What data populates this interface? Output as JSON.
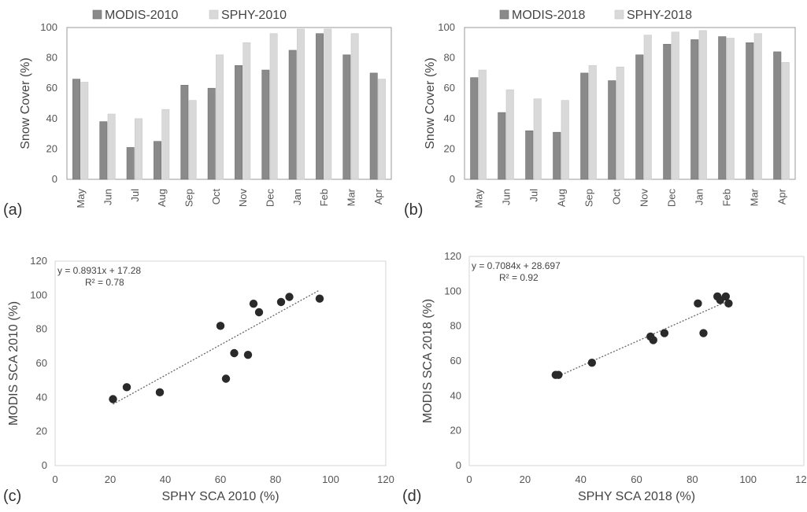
{
  "chart_data": [
    {
      "panel": "(a)",
      "type": "bar",
      "categories": [
        "May",
        "Jun",
        "Jul",
        "Aug",
        "Sep",
        "Oct",
        "Nov",
        "Dec",
        "Jan",
        "Feb",
        "Mar",
        "Apr"
      ],
      "series": [
        {
          "name": "MODIS-2010",
          "values": [
            66,
            38,
            21,
            25,
            62,
            60,
            75,
            72,
            85,
            96,
            82,
            70
          ]
        },
        {
          "name": "SPHY-2010",
          "values": [
            64,
            43,
            40,
            46,
            52,
            82,
            90,
            96,
            99,
            99,
            96,
            66
          ]
        }
      ],
      "xlabel": "",
      "ylabel": "Snow Cover (%)",
      "ylim": [
        0,
        100
      ],
      "yticks": [
        0,
        20,
        40,
        60,
        80,
        100
      ],
      "legend_position": "top",
      "colors": [
        "#8a8a8a",
        "#d9d9d9"
      ]
    },
    {
      "panel": "(b)",
      "type": "bar",
      "categories": [
        "May",
        "Jun",
        "Jul",
        "Aug",
        "Sep",
        "Oct",
        "Nov",
        "Dec",
        "Jan",
        "Feb",
        "Mar",
        "Apr"
      ],
      "series": [
        {
          "name": "MODIS-2018",
          "values": [
            67,
            44,
            32,
            31,
            70,
            65,
            82,
            89,
            92,
            94,
            90,
            84
          ]
        },
        {
          "name": "SPHY-2018",
          "values": [
            72,
            59,
            53,
            52,
            75,
            74,
            95,
            97,
            98,
            93,
            96,
            77
          ]
        }
      ],
      "xlabel": "",
      "ylabel": "Snow Cover (%)",
      "ylim": [
        0,
        100
      ],
      "yticks": [
        0,
        20,
        40,
        60,
        80,
        100
      ],
      "legend_position": "top",
      "colors": [
        "#8a8a8a",
        "#d9d9d9"
      ]
    },
    {
      "panel": "(c)",
      "type": "scatter",
      "x": [
        21,
        26,
        38,
        60,
        62,
        65,
        70,
        72,
        74,
        82,
        85,
        96
      ],
      "y": [
        39,
        46,
        43,
        82,
        51,
        66,
        65,
        95,
        90,
        96,
        99,
        98
      ],
      "trendline": {
        "slope": 0.8931,
        "intercept": 17.28,
        "x_range": [
          21,
          96
        ]
      },
      "equation": "y = 0.8931x + 17.28",
      "r2": "R² = 0.78",
      "xlabel": "SPHY SCA 2010 (%)",
      "ylabel": "MODIS SCA 2010 (%)",
      "xlim": [
        0,
        120
      ],
      "ylim": [
        0,
        120
      ],
      "xticks": [
        0,
        20,
        40,
        60,
        80,
        100,
        120
      ],
      "yticks": [
        0,
        20,
        40,
        60,
        80,
        100,
        120
      ],
      "grid": false
    },
    {
      "panel": "(d)",
      "type": "scatter",
      "x": [
        31,
        32,
        44,
        65,
        66,
        70,
        82,
        84,
        89,
        90,
        92,
        93
      ],
      "y": [
        52,
        52,
        59,
        74,
        72,
        76,
        93,
        76,
        97,
        95,
        97,
        93
      ],
      "trendline": {
        "slope": 0.7084,
        "intercept": 28.697,
        "x_range": [
          31,
          93
        ]
      },
      "equation": "y = 0.7084x + 28.697",
      "r2": "R² = 0.92",
      "xlabel": "SPHY SCA 2018 (%)",
      "ylabel": "MODIS SCA 2018 (%)",
      "xlim": [
        0,
        120
      ],
      "ylim": [
        0,
        120
      ],
      "xticks": [
        0,
        20,
        40,
        60,
        80,
        100,
        120
      ],
      "yticks": [
        0,
        20,
        40,
        60,
        80,
        100,
        120
      ],
      "grid": false
    }
  ]
}
